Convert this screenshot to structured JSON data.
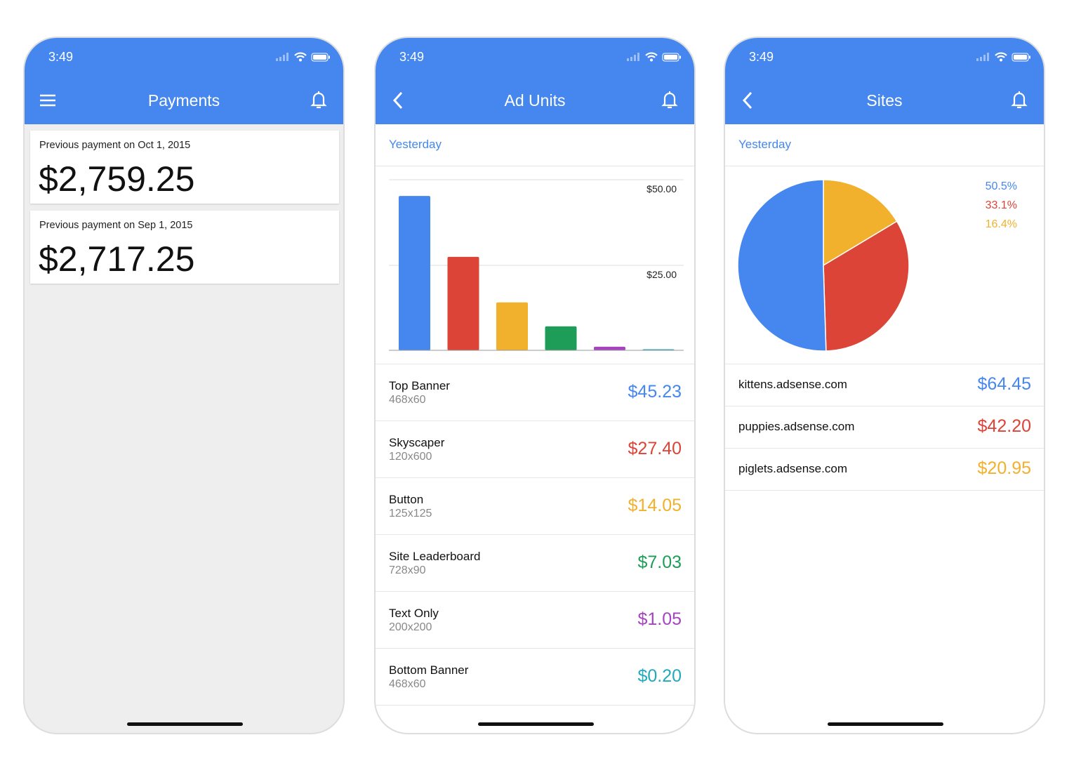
{
  "status": {
    "time": "3:49"
  },
  "payments": {
    "title": "Payments",
    "items": [
      {
        "label": "Previous payment on Oct 1, 2015",
        "amount": "$2,759.25"
      },
      {
        "label": "Previous payment on Sep 1, 2015",
        "amount": "$2,717.25"
      }
    ]
  },
  "ad_units": {
    "title": "Ad Units",
    "period": "Yesterday",
    "chart_data": {
      "type": "bar",
      "categories": [
        "Top Banner",
        "Skyscaper",
        "Button",
        "Site Leaderboard",
        "Text Only",
        "Bottom Banner"
      ],
      "values": [
        45.23,
        27.4,
        14.05,
        7.03,
        1.05,
        0.2
      ],
      "colors": [
        "#4587ee",
        "#db4437",
        "#f2b12c",
        "#1e9d58",
        "#a644c0",
        "#22a9bd"
      ],
      "yticks": [
        "$50.00",
        "$25.00"
      ],
      "ylim": [
        0,
        50
      ],
      "grid": true
    },
    "items": [
      {
        "name": "Top Banner",
        "size": "468x60",
        "value": "$45.23",
        "color": "#4587ee"
      },
      {
        "name": "Skyscaper",
        "size": "120x600",
        "value": "$27.40",
        "color": "#db4437"
      },
      {
        "name": "Button",
        "size": "125x125",
        "value": "$14.05",
        "color": "#f2b12c"
      },
      {
        "name": "Site Leaderboard",
        "size": "728x90",
        "value": "$7.03",
        "color": "#1e9d58"
      },
      {
        "name": "Text Only",
        "size": "200x200",
        "value": "$1.05",
        "color": "#a644c0"
      },
      {
        "name": "Bottom Banner",
        "size": "468x60",
        "value": "$0.20",
        "color": "#22a9bd"
      }
    ]
  },
  "sites": {
    "title": "Sites",
    "period": "Yesterday",
    "chart_data": {
      "type": "pie",
      "labels": [
        "kittens.adsense.com",
        "puppies.adsense.com",
        "piglets.adsense.com"
      ],
      "values": [
        50.5,
        33.1,
        16.4
      ],
      "percent_labels": [
        "50.5%",
        "33.1%",
        "16.4%"
      ],
      "colors": [
        "#4587ee",
        "#db4437",
        "#f2b12c"
      ]
    },
    "items": [
      {
        "name": "kittens.adsense.com",
        "value": "$64.45",
        "color": "#4587ee"
      },
      {
        "name": "puppies.adsense.com",
        "value": "$42.20",
        "color": "#db4437"
      },
      {
        "name": "piglets.adsense.com",
        "value": "$20.95",
        "color": "#f2b12c"
      }
    ]
  }
}
